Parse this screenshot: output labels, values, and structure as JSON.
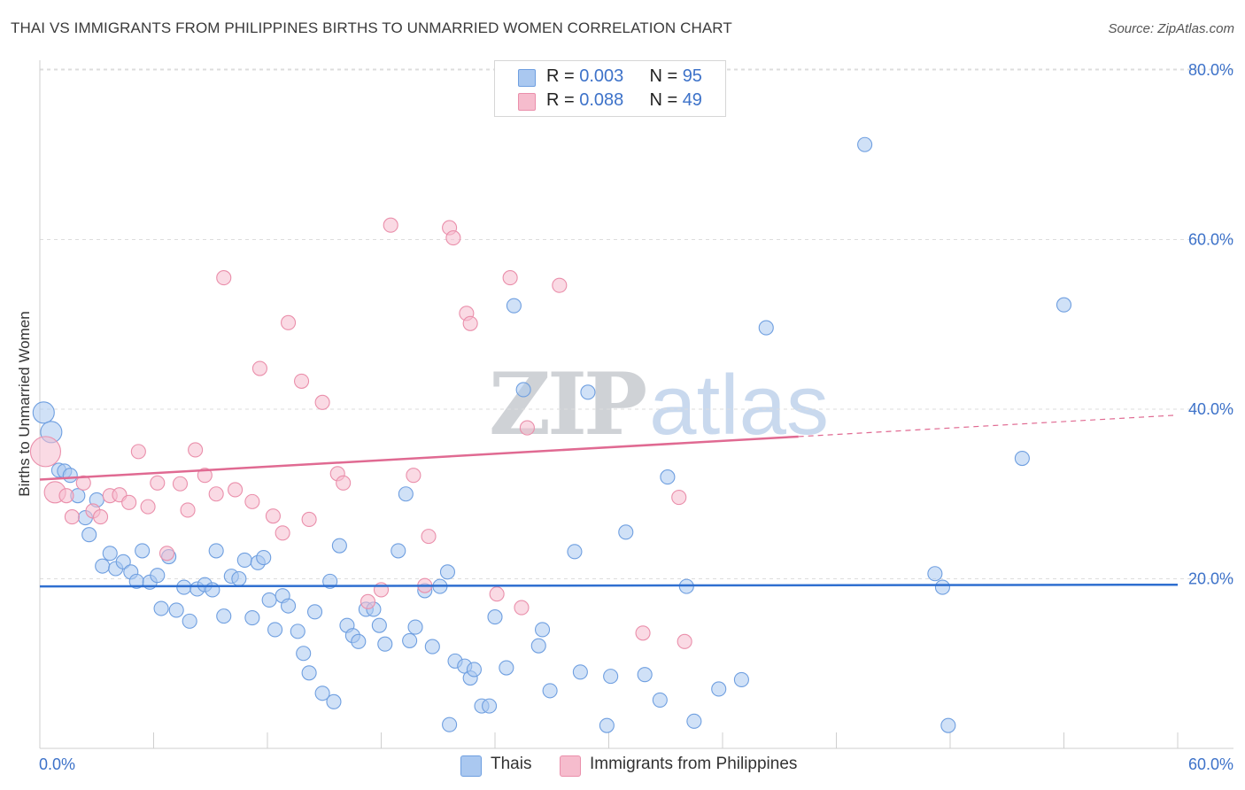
{
  "header": {
    "title": "THAI VS IMMIGRANTS FROM PHILIPPINES BIRTHS TO UNMARRIED WOMEN CORRELATION CHART",
    "source": "Source: ZipAtlas.com"
  },
  "watermark": {
    "zip": "ZIP",
    "atlas": "atlas"
  },
  "legend": {
    "rows": [
      {
        "r_label": "R = ",
        "r_value": "0.003",
        "n_label": "N = ",
        "n_value": "95"
      },
      {
        "r_label": "R = ",
        "r_value": "0.088",
        "n_label": "N = ",
        "n_value": "49"
      }
    ]
  },
  "bottom_legend": {
    "thais": "Thais",
    "philippines": "Immigrants from Philippines"
  },
  "colors": {
    "blue_fill": "#aac8f0",
    "blue_stroke": "#6f9fe0",
    "blue_line": "#2f6fd0",
    "pink_fill": "#f6bccd",
    "pink_stroke": "#ea8fab",
    "pink_line": "#e06a92",
    "grid": "#dddddd",
    "tick_text": "#3d72c9"
  },
  "chart_data": {
    "type": "scatter",
    "title": "THAI VS IMMIGRANTS FROM PHILIPPINES BIRTHS TO UNMARRIED WOMEN CORRELATION CHART",
    "xlabel": "",
    "ylabel": "Births to Unmarried Women",
    "xlim": [
      0,
      60
    ],
    "ylim": [
      0,
      80
    ],
    "x_tick_labels": [
      "0.0%",
      "60.0%"
    ],
    "y_ticks": [
      20,
      40,
      60,
      80
    ],
    "y_tick_labels": [
      "20.0%",
      "40.0%",
      "60.0%",
      "80.0%"
    ],
    "grid": true,
    "legend_position": "top-center",
    "series": [
      {
        "name": "Thais",
        "color": "#aac8f0",
        "trend": {
          "x": [
            0,
            60
          ],
          "y": [
            19.1,
            19.3
          ],
          "solid_until": 60
        },
        "points": [
          {
            "x": 0.2,
            "y": 39.6,
            "s": 2
          },
          {
            "x": 0.6,
            "y": 37.3,
            "s": 2
          },
          {
            "x": 1.0,
            "y": 32.8,
            "s": 1
          },
          {
            "x": 1.3,
            "y": 32.7,
            "s": 1
          },
          {
            "x": 1.6,
            "y": 32.2,
            "s": 1
          },
          {
            "x": 2.0,
            "y": 29.8,
            "s": 1
          },
          {
            "x": 2.4,
            "y": 27.2,
            "s": 1
          },
          {
            "x": 2.6,
            "y": 25.2,
            "s": 1
          },
          {
            "x": 3.0,
            "y": 29.3,
            "s": 1
          },
          {
            "x": 3.3,
            "y": 21.5,
            "s": 1
          },
          {
            "x": 3.7,
            "y": 23.0,
            "s": 1
          },
          {
            "x": 4.0,
            "y": 21.2,
            "s": 1
          },
          {
            "x": 4.4,
            "y": 22.0,
            "s": 1
          },
          {
            "x": 4.8,
            "y": 20.8,
            "s": 1
          },
          {
            "x": 5.1,
            "y": 19.7,
            "s": 1
          },
          {
            "x": 5.4,
            "y": 23.3,
            "s": 1
          },
          {
            "x": 5.8,
            "y": 19.6,
            "s": 1
          },
          {
            "x": 6.2,
            "y": 20.4,
            "s": 1
          },
          {
            "x": 6.4,
            "y": 16.5,
            "s": 1
          },
          {
            "x": 6.8,
            "y": 22.6,
            "s": 1
          },
          {
            "x": 7.2,
            "y": 16.3,
            "s": 1
          },
          {
            "x": 7.6,
            "y": 19.0,
            "s": 1
          },
          {
            "x": 7.9,
            "y": 15.0,
            "s": 1
          },
          {
            "x": 8.3,
            "y": 18.8,
            "s": 1
          },
          {
            "x": 8.7,
            "y": 19.3,
            "s": 1
          },
          {
            "x": 9.1,
            "y": 18.7,
            "s": 1
          },
          {
            "x": 9.3,
            "y": 23.3,
            "s": 1
          },
          {
            "x": 9.7,
            "y": 15.6,
            "s": 1
          },
          {
            "x": 10.1,
            "y": 20.3,
            "s": 1
          },
          {
            "x": 10.5,
            "y": 20.0,
            "s": 1
          },
          {
            "x": 10.8,
            "y": 22.2,
            "s": 1
          },
          {
            "x": 11.2,
            "y": 15.4,
            "s": 1
          },
          {
            "x": 11.5,
            "y": 21.9,
            "s": 1
          },
          {
            "x": 11.8,
            "y": 22.5,
            "s": 1
          },
          {
            "x": 12.1,
            "y": 17.5,
            "s": 1
          },
          {
            "x": 12.4,
            "y": 14.0,
            "s": 1
          },
          {
            "x": 12.8,
            "y": 18.0,
            "s": 1
          },
          {
            "x": 13.1,
            "y": 16.8,
            "s": 1
          },
          {
            "x": 13.6,
            "y": 13.8,
            "s": 1
          },
          {
            "x": 13.9,
            "y": 11.2,
            "s": 1
          },
          {
            "x": 14.2,
            "y": 8.9,
            "s": 1
          },
          {
            "x": 14.5,
            "y": 16.1,
            "s": 1
          },
          {
            "x": 14.9,
            "y": 6.5,
            "s": 1
          },
          {
            "x": 15.3,
            "y": 19.7,
            "s": 1
          },
          {
            "x": 15.5,
            "y": 5.5,
            "s": 1
          },
          {
            "x": 15.8,
            "y": 23.9,
            "s": 1
          },
          {
            "x": 16.2,
            "y": 14.5,
            "s": 1
          },
          {
            "x": 16.5,
            "y": 13.3,
            "s": 1
          },
          {
            "x": 16.8,
            "y": 12.6,
            "s": 1
          },
          {
            "x": 17.2,
            "y": 16.4,
            "s": 1
          },
          {
            "x": 17.6,
            "y": 16.4,
            "s": 1
          },
          {
            "x": 17.9,
            "y": 14.5,
            "s": 1
          },
          {
            "x": 18.2,
            "y": 12.3,
            "s": 1
          },
          {
            "x": 18.9,
            "y": 23.3,
            "s": 1
          },
          {
            "x": 19.3,
            "y": 30.0,
            "s": 1
          },
          {
            "x": 19.5,
            "y": 12.7,
            "s": 1
          },
          {
            "x": 19.8,
            "y": 14.3,
            "s": 1
          },
          {
            "x": 20.3,
            "y": 18.6,
            "s": 1
          },
          {
            "x": 20.7,
            "y": 12.0,
            "s": 1
          },
          {
            "x": 21.1,
            "y": 19.1,
            "s": 1
          },
          {
            "x": 21.5,
            "y": 20.8,
            "s": 1
          },
          {
            "x": 21.6,
            "y": 2.8,
            "s": 1
          },
          {
            "x": 21.9,
            "y": 10.3,
            "s": 1
          },
          {
            "x": 22.4,
            "y": 9.7,
            "s": 1
          },
          {
            "x": 22.7,
            "y": 8.3,
            "s": 1
          },
          {
            "x": 22.9,
            "y": 9.3,
            "s": 1
          },
          {
            "x": 23.3,
            "y": 5.0,
            "s": 1
          },
          {
            "x": 23.7,
            "y": 5.0,
            "s": 1
          },
          {
            "x": 24.0,
            "y": 15.5,
            "s": 1
          },
          {
            "x": 24.6,
            "y": 9.5,
            "s": 1
          },
          {
            "x": 25.0,
            "y": 52.2,
            "s": 1
          },
          {
            "x": 25.5,
            "y": 42.3,
            "s": 1
          },
          {
            "x": 26.3,
            "y": 12.1,
            "s": 1
          },
          {
            "x": 26.5,
            "y": 14.0,
            "s": 1
          },
          {
            "x": 26.9,
            "y": 6.8,
            "s": 1
          },
          {
            "x": 28.2,
            "y": 23.2,
            "s": 1
          },
          {
            "x": 28.5,
            "y": 9.0,
            "s": 1
          },
          {
            "x": 28.9,
            "y": 42.0,
            "s": 1
          },
          {
            "x": 29.9,
            "y": 2.7,
            "s": 1
          },
          {
            "x": 30.1,
            "y": 8.5,
            "s": 1
          },
          {
            "x": 30.9,
            "y": 25.5,
            "s": 1
          },
          {
            "x": 31.9,
            "y": 8.7,
            "s": 1
          },
          {
            "x": 33.1,
            "y": 32.0,
            "s": 1
          },
          {
            "x": 32.7,
            "y": 5.7,
            "s": 1
          },
          {
            "x": 34.1,
            "y": 19.1,
            "s": 1
          },
          {
            "x": 34.5,
            "y": 3.2,
            "s": 1
          },
          {
            "x": 35.8,
            "y": 7.0,
            "s": 1
          },
          {
            "x": 37.0,
            "y": 8.1,
            "s": 1
          },
          {
            "x": 38.3,
            "y": 49.6,
            "s": 1
          },
          {
            "x": 43.5,
            "y": 71.2,
            "s": 1
          },
          {
            "x": 47.2,
            "y": 20.6,
            "s": 1
          },
          {
            "x": 47.6,
            "y": 19.0,
            "s": 1
          },
          {
            "x": 47.9,
            "y": 2.7,
            "s": 1
          },
          {
            "x": 51.8,
            "y": 34.2,
            "s": 1
          },
          {
            "x": 54.0,
            "y": 52.3,
            "s": 1
          }
        ]
      },
      {
        "name": "Immigrants from Philippines",
        "color": "#f6bccd",
        "trend": {
          "x": [
            0,
            60
          ],
          "y": [
            31.7,
            39.3
          ],
          "solid_until": 40
        },
        "points": [
          {
            "x": 0.3,
            "y": 35.0,
            "s": 3
          },
          {
            "x": 0.8,
            "y": 30.2,
            "s": 2
          },
          {
            "x": 1.4,
            "y": 29.8,
            "s": 1
          },
          {
            "x": 1.7,
            "y": 27.3,
            "s": 1
          },
          {
            "x": 2.3,
            "y": 31.3,
            "s": 1
          },
          {
            "x": 2.8,
            "y": 28.0,
            "s": 1
          },
          {
            "x": 3.2,
            "y": 27.3,
            "s": 1
          },
          {
            "x": 3.7,
            "y": 29.8,
            "s": 1
          },
          {
            "x": 4.2,
            "y": 29.9,
            "s": 1
          },
          {
            "x": 4.7,
            "y": 29.0,
            "s": 1
          },
          {
            "x": 5.2,
            "y": 35.0,
            "s": 1
          },
          {
            "x": 5.7,
            "y": 28.5,
            "s": 1
          },
          {
            "x": 6.2,
            "y": 31.3,
            "s": 1
          },
          {
            "x": 6.7,
            "y": 23.0,
            "s": 1
          },
          {
            "x": 7.4,
            "y": 31.2,
            "s": 1
          },
          {
            "x": 7.8,
            "y": 28.1,
            "s": 1
          },
          {
            "x": 8.2,
            "y": 35.2,
            "s": 1
          },
          {
            "x": 8.7,
            "y": 32.2,
            "s": 1
          },
          {
            "x": 9.3,
            "y": 30.0,
            "s": 1
          },
          {
            "x": 9.7,
            "y": 55.5,
            "s": 1
          },
          {
            "x": 10.3,
            "y": 30.5,
            "s": 1
          },
          {
            "x": 11.2,
            "y": 29.1,
            "s": 1
          },
          {
            "x": 11.6,
            "y": 44.8,
            "s": 1
          },
          {
            "x": 12.3,
            "y": 27.4,
            "s": 1
          },
          {
            "x": 12.8,
            "y": 25.4,
            "s": 1
          },
          {
            "x": 13.1,
            "y": 50.2,
            "s": 1
          },
          {
            "x": 13.8,
            "y": 43.3,
            "s": 1
          },
          {
            "x": 14.2,
            "y": 27.0,
            "s": 1
          },
          {
            "x": 14.9,
            "y": 40.8,
            "s": 1
          },
          {
            "x": 15.7,
            "y": 32.4,
            "s": 1
          },
          {
            "x": 16.0,
            "y": 31.3,
            "s": 1
          },
          {
            "x": 17.3,
            "y": 17.3,
            "s": 1
          },
          {
            "x": 18.0,
            "y": 18.7,
            "s": 1
          },
          {
            "x": 18.5,
            "y": 61.7,
            "s": 1
          },
          {
            "x": 19.7,
            "y": 32.2,
            "s": 1
          },
          {
            "x": 20.3,
            "y": 19.2,
            "s": 1
          },
          {
            "x": 20.5,
            "y": 25.0,
            "s": 1
          },
          {
            "x": 21.6,
            "y": 61.4,
            "s": 1
          },
          {
            "x": 21.8,
            "y": 60.2,
            "s": 1
          },
          {
            "x": 22.5,
            "y": 51.3,
            "s": 1
          },
          {
            "x": 22.7,
            "y": 50.1,
            "s": 1
          },
          {
            "x": 24.1,
            "y": 18.2,
            "s": 1
          },
          {
            "x": 24.8,
            "y": 55.5,
            "s": 1
          },
          {
            "x": 25.4,
            "y": 16.6,
            "s": 1
          },
          {
            "x": 25.7,
            "y": 37.8,
            "s": 1
          },
          {
            "x": 27.4,
            "y": 54.6,
            "s": 1
          },
          {
            "x": 31.8,
            "y": 13.6,
            "s": 1
          },
          {
            "x": 33.7,
            "y": 29.6,
            "s": 1
          },
          {
            "x": 34.0,
            "y": 12.6,
            "s": 1
          }
        ]
      }
    ]
  }
}
